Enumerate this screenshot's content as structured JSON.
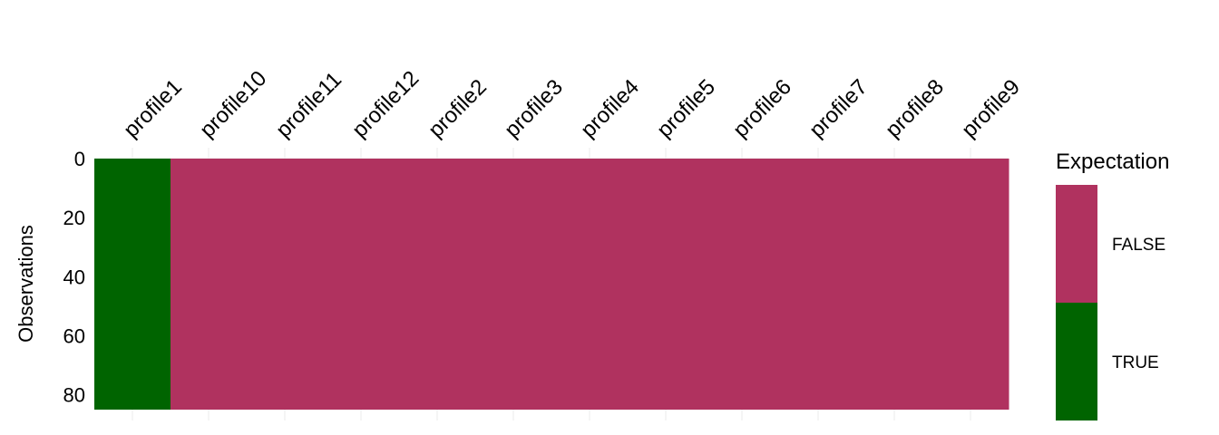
{
  "chart_data": {
    "type": "heatmap",
    "categories": [
      "profile1",
      "profile10",
      "profile11",
      "profile12",
      "profile2",
      "profile3",
      "profile4",
      "profile5",
      "profile6",
      "profile7",
      "profile8",
      "profile9"
    ],
    "values": [
      "TRUE",
      "FALSE",
      "FALSE",
      "FALSE",
      "FALSE",
      "FALSE",
      "FALSE",
      "FALSE",
      "FALSE",
      "FALSE",
      "FALSE",
      "FALSE"
    ],
    "y_ticks": [
      0,
      20,
      40,
      60,
      80
    ],
    "ylim": [
      0,
      85
    ],
    "y_reversed": true,
    "ylabel": "Observations",
    "x_axis_position": "top",
    "grid": true,
    "legend": {
      "title": "Expectation",
      "placement": "right",
      "entries": [
        {
          "label": "FALSE",
          "color": "#b0325f"
        },
        {
          "label": "TRUE",
          "color": "#006400"
        }
      ]
    }
  },
  "colors": {
    "TRUE": "#006400",
    "FALSE": "#b0325f"
  }
}
